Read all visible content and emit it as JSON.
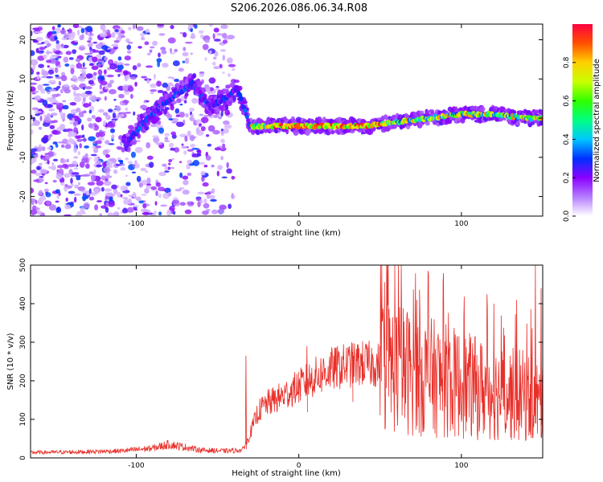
{
  "figure_title": "S206.2026.086.06.34.R08",
  "chart_data": [
    {
      "type": "heatmap",
      "name": "spectrogram",
      "title": "S206.2026.086.06.34.R08",
      "xlabel": "Height of straight line (km)",
      "ylabel": "Frequency (Hz)",
      "xlim": [
        -165,
        150
      ],
      "ylim": [
        -25,
        24
      ],
      "xticks": [
        -100,
        0,
        100
      ],
      "yticks": [
        -20,
        -10,
        0,
        10,
        20
      ],
      "colorbar": {
        "label": "Normalized spectral amplitude",
        "range": [
          0,
          1
        ],
        "ticks": [
          "0.0",
          "0.2",
          "0.4",
          "0.6",
          "0.8"
        ],
        "tick_values": [
          0,
          0.2,
          0.4,
          0.6,
          0.8
        ],
        "colors": [
          "#ffffff",
          "#b57cff",
          "#8a00ff",
          "#0030ff",
          "#00c8ff",
          "#00ff80",
          "#30ff00",
          "#c8ff00",
          "#ffd000",
          "#ff5000",
          "#ff0040"
        ]
      },
      "trace": {
        "x": [
          -105,
          -95,
          -85,
          -75,
          -65,
          -55,
          -45,
          -38,
          -30,
          -20,
          -10,
          0,
          20,
          40,
          60,
          80,
          100,
          120,
          140,
          150
        ],
        "y": [
          -6,
          -1,
          3,
          6,
          9,
          3,
          5,
          8,
          -2,
          -2,
          -2,
          -2,
          -2,
          -2,
          -1,
          0,
          1,
          1,
          0,
          0
        ]
      }
    },
    {
      "type": "line",
      "name": "snr",
      "xlabel": "Height of straight line (km)",
      "ylabel": "SNR (10 * v/v)",
      "xlim": [
        -165,
        150
      ],
      "ylim": [
        0,
        500
      ],
      "xticks": [
        -100,
        0,
        100
      ],
      "yticks": [
        0,
        100,
        200,
        300,
        400,
        500
      ],
      "color": "#e8302a",
      "envelope": {
        "x": [
          -165,
          -140,
          -110,
          -90,
          -80,
          -70,
          -60,
          -45,
          -35,
          -32,
          -25,
          -20,
          -10,
          0,
          10,
          20,
          30,
          40,
          50,
          60,
          70,
          80,
          90,
          100,
          110,
          120,
          130,
          140,
          145,
          150
        ],
        "y": [
          14,
          15,
          18,
          25,
          35,
          28,
          20,
          18,
          20,
          40,
          120,
          140,
          160,
          185,
          210,
          230,
          240,
          245,
          240,
          235,
          220,
          210,
          200,
          190,
          180,
          170,
          165,
          160,
          150,
          140
        ]
      },
      "peaks": [
        {
          "x": -32.5,
          "y": 265
        },
        {
          "x": 5,
          "y": 290
        },
        {
          "x": 33,
          "y": 275
        },
        {
          "x": 72.5,
          "y": 410
        },
        {
          "x": 120,
          "y": 400
        },
        {
          "x": 134,
          "y": 410
        },
        {
          "x": 145.5,
          "y": 500
        },
        {
          "x": 149,
          "y": 440
        }
      ]
    }
  ]
}
